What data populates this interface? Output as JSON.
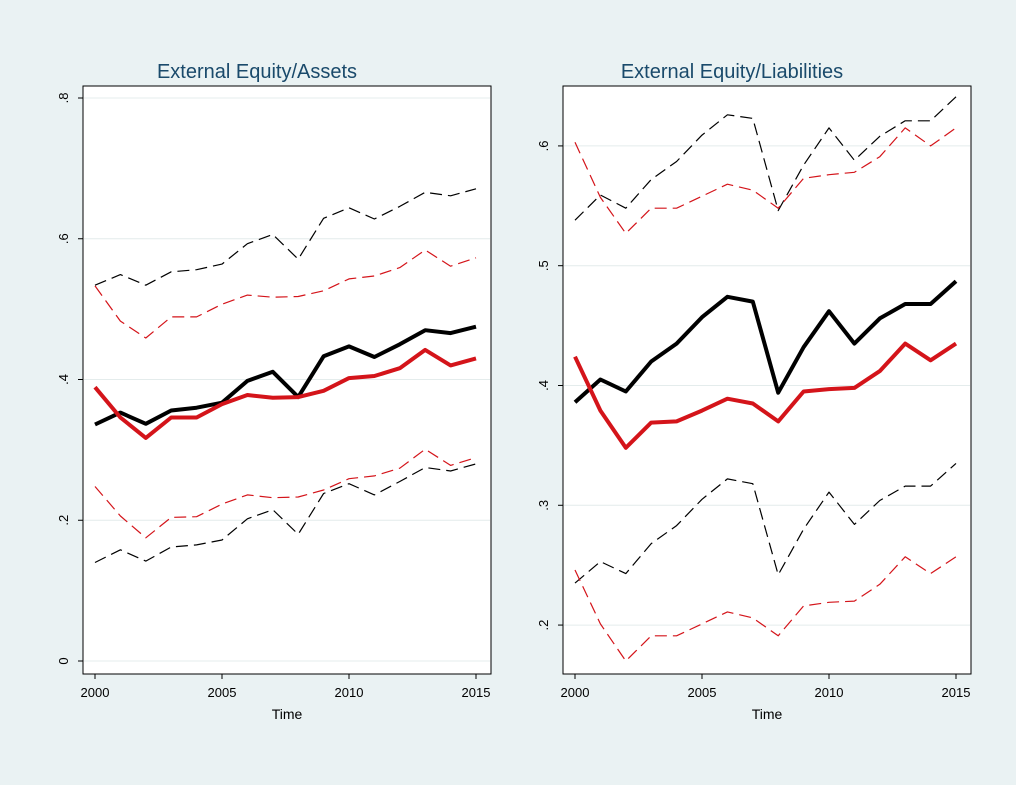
{
  "colors": {
    "background": "#eaf2f3",
    "plot_area": "#ffffff",
    "grid": "#e4ecec",
    "black": "#000000",
    "red": "#d4141a",
    "title": "#1a4a6b"
  },
  "chart_data": [
    {
      "type": "line",
      "title": "External Equity/Assets",
      "xlabel": "Time",
      "ylabel": "",
      "xlim": [
        2000,
        2015
      ],
      "ylim": [
        0,
        0.8
      ],
      "xticks": [
        2000,
        2005,
        2010,
        2015
      ],
      "xtick_labels": [
        "2000",
        "2005",
        "2010",
        "2015"
      ],
      "yticks": [
        0,
        0.2,
        0.4,
        0.6,
        0.8
      ],
      "ytick_labels": [
        "0",
        ".2",
        ".4",
        ".6",
        ".8"
      ],
      "grid": true,
      "x": [
        2000,
        2001,
        2002,
        2003,
        2004,
        2005,
        2006,
        2007,
        2008,
        2009,
        2010,
        2011,
        2012,
        2013,
        2014,
        2015
      ],
      "series": [
        {
          "color": "#000000",
          "style": "solid-thick",
          "values": [
            0.336,
            0.353,
            0.337,
            0.356,
            0.36,
            0.367,
            0.398,
            0.411,
            0.375,
            0.433,
            0.447,
            0.432,
            0.45,
            0.47,
            0.466,
            0.475
          ]
        },
        {
          "color": "#000000",
          "style": "dashed",
          "values": [
            0.534,
            0.549,
            0.534,
            0.553,
            0.556,
            0.564,
            0.593,
            0.606,
            0.571,
            0.629,
            0.644,
            0.628,
            0.646,
            0.666,
            0.661,
            0.671
          ]
        },
        {
          "color": "#000000",
          "style": "dashed",
          "values": [
            0.14,
            0.158,
            0.142,
            0.162,
            0.165,
            0.172,
            0.202,
            0.215,
            0.18,
            0.238,
            0.252,
            0.236,
            0.255,
            0.275,
            0.27,
            0.28
          ]
        },
        {
          "color": "#d4141a",
          "style": "solid-thick",
          "values": [
            0.389,
            0.346,
            0.317,
            0.346,
            0.346,
            0.365,
            0.378,
            0.374,
            0.375,
            0.384,
            0.402,
            0.405,
            0.416,
            0.442,
            0.42,
            0.43
          ]
        },
        {
          "color": "#d4141a",
          "style": "dashed",
          "values": [
            0.533,
            0.483,
            0.459,
            0.489,
            0.489,
            0.507,
            0.52,
            0.517,
            0.518,
            0.526,
            0.543,
            0.547,
            0.559,
            0.584,
            0.561,
            0.573
          ]
        },
        {
          "color": "#d4141a",
          "style": "dashed",
          "values": [
            0.248,
            0.206,
            0.175,
            0.204,
            0.205,
            0.223,
            0.236,
            0.232,
            0.233,
            0.243,
            0.259,
            0.263,
            0.274,
            0.301,
            0.278,
            0.289
          ]
        }
      ]
    },
    {
      "type": "line",
      "title": "External Equity/Liabilities",
      "xlabel": "Time",
      "ylabel": "",
      "xlim": [
        2000,
        2015
      ],
      "ylim": [
        0.17,
        0.64
      ],
      "xticks": [
        2000,
        2005,
        2010,
        2015
      ],
      "xtick_labels": [
        "2000",
        "2005",
        "2010",
        "2015"
      ],
      "yticks": [
        0.2,
        0.3,
        0.4,
        0.5,
        0.6
      ],
      "ytick_labels": [
        ".2",
        ".3",
        ".4",
        ".5",
        ".6"
      ],
      "grid": true,
      "x": [
        2000,
        2001,
        2002,
        2003,
        2004,
        2005,
        2006,
        2007,
        2008,
        2009,
        2010,
        2011,
        2012,
        2013,
        2014,
        2015
      ],
      "series": [
        {
          "color": "#000000",
          "style": "solid-thick",
          "values": [
            0.386,
            0.405,
            0.395,
            0.42,
            0.435,
            0.457,
            0.474,
            0.47,
            0.394,
            0.432,
            0.462,
            0.435,
            0.456,
            0.468,
            0.468,
            0.487
          ]
        },
        {
          "color": "#000000",
          "style": "dashed",
          "values": [
            0.538,
            0.559,
            0.548,
            0.572,
            0.587,
            0.609,
            0.626,
            0.623,
            0.546,
            0.584,
            0.615,
            0.588,
            0.608,
            0.621,
            0.621,
            0.641
          ]
        },
        {
          "color": "#000000",
          "style": "dashed",
          "values": [
            0.235,
            0.253,
            0.243,
            0.268,
            0.283,
            0.305,
            0.322,
            0.318,
            0.242,
            0.28,
            0.311,
            0.284,
            0.304,
            0.316,
            0.316,
            0.335
          ]
        },
        {
          "color": "#d4141a",
          "style": "solid-thick",
          "values": [
            0.424,
            0.379,
            0.348,
            0.369,
            0.37,
            0.379,
            0.389,
            0.385,
            0.37,
            0.395,
            0.397,
            0.398,
            0.412,
            0.435,
            0.421,
            0.435
          ]
        },
        {
          "color": "#d4141a",
          "style": "dashed",
          "values": [
            0.603,
            0.557,
            0.527,
            0.548,
            0.548,
            0.558,
            0.568,
            0.563,
            0.548,
            0.573,
            0.576,
            0.578,
            0.591,
            0.615,
            0.6,
            0.615
          ]
        },
        {
          "color": "#d4141a",
          "style": "dashed",
          "values": [
            0.246,
            0.201,
            0.17,
            0.191,
            0.191,
            0.201,
            0.211,
            0.206,
            0.191,
            0.216,
            0.219,
            0.22,
            0.234,
            0.257,
            0.243,
            0.257
          ]
        }
      ]
    }
  ]
}
